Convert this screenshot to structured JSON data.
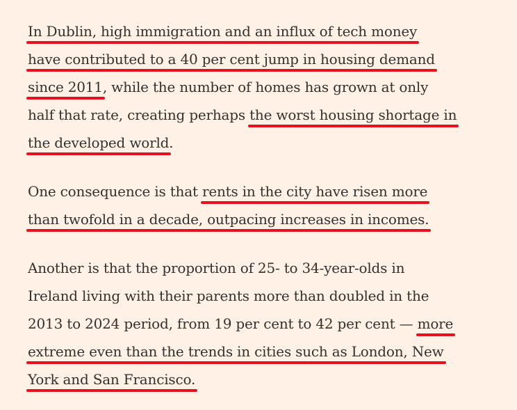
{
  "article": {
    "paragraphs": [
      {
        "lines": [
          {
            "a": "In Dublin, high immigration and an influx of tech money"
          },
          {
            "a": "have contributed to a 40 per cent jump in housing demand"
          },
          {
            "a": "since 2011",
            "b": ", while the number of homes has grown at only"
          },
          {
            "a": "half that rate, creating perhaps ",
            "b": "the worst housing shortage in"
          },
          {
            "a": "the developed world",
            "b": "."
          }
        ]
      },
      {
        "lines": [
          {
            "a": "One consequence is that ",
            "b": "rents in the city have risen more"
          },
          {
            "a": "than twofold in a decade, outpacing increases in incomes."
          }
        ]
      },
      {
        "lines": [
          {
            "a": "Another is that the proportion of 25- to 34-year-olds in"
          },
          {
            "a": "Ireland living with their parents more than doubled in the"
          },
          {
            "a": "2013 to 2024 period, from 19 per cent to 42 per cent — ",
            "b": "more"
          },
          {
            "a": "extreme even than the trends in cities such as London, ",
            "b": "New"
          },
          {
            "a": "York and San Francisco."
          }
        ]
      }
    ]
  },
  "colors": {
    "background": "#fff1e5",
    "text": "#33302e",
    "underline": "#e3121f"
  }
}
